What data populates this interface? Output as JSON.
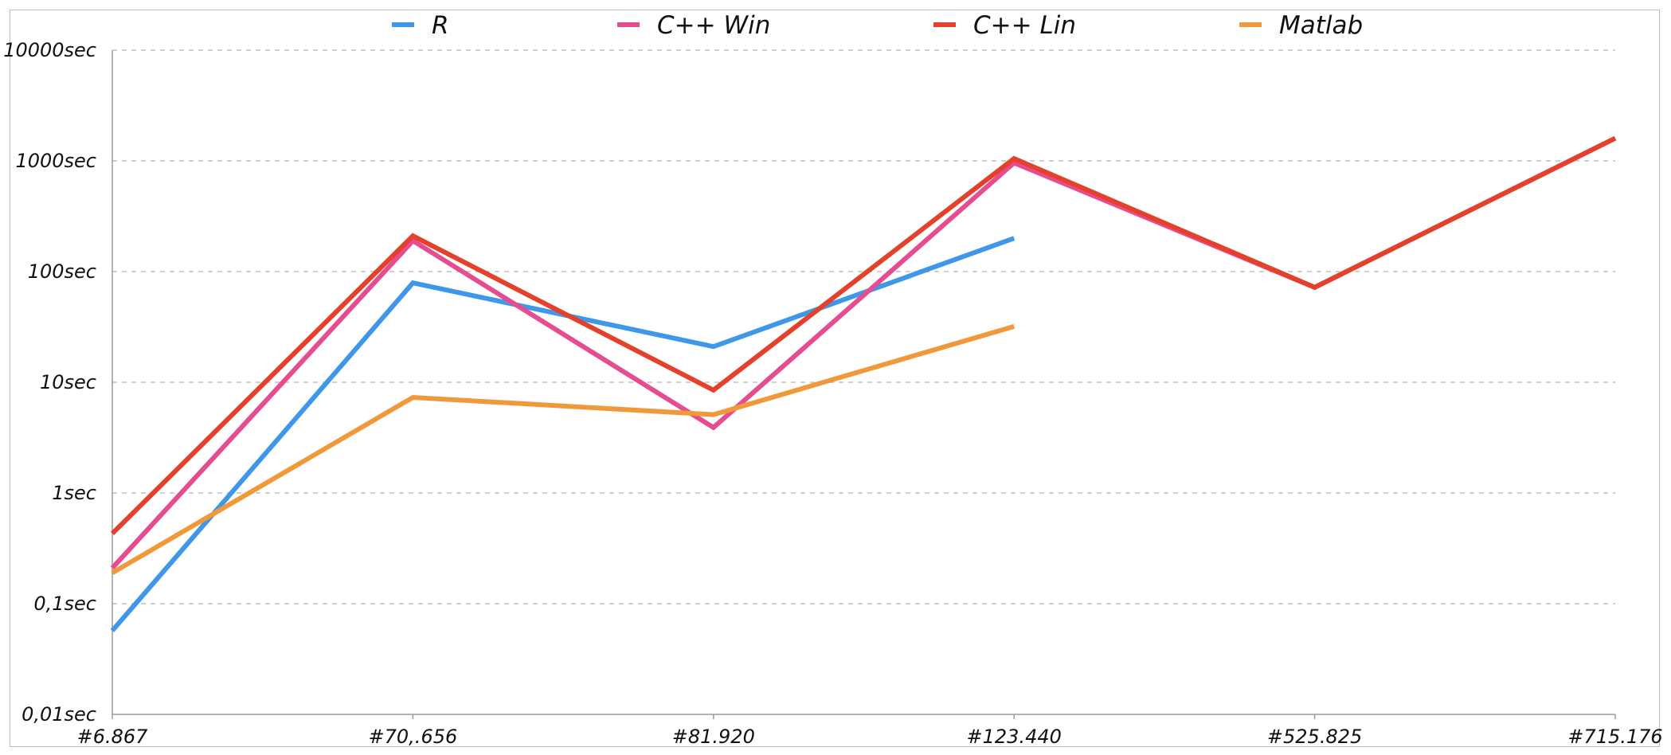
{
  "chart_data": {
    "type": "line",
    "title": "",
    "xlabel": "",
    "ylabel": "",
    "y_scale": "log",
    "ylim": [
      0.01,
      10000
    ],
    "grid": true,
    "legend_position": "top",
    "categories": [
      "#6.867",
      "#70,.656",
      "#81.920",
      "#123.440",
      "#525.825",
      "#715.176"
    ],
    "y_ticks": [
      {
        "value": 0.01,
        "label": "0,01sec"
      },
      {
        "value": 0.1,
        "label": "0,1sec"
      },
      {
        "value": 1,
        "label": "1sec"
      },
      {
        "value": 10,
        "label": "10sec"
      },
      {
        "value": 100,
        "label": "100sec"
      },
      {
        "value": 1000,
        "label": "1000sec"
      },
      {
        "value": 10000,
        "label": "10000sec"
      }
    ],
    "series": [
      {
        "name": "R",
        "color": "#3f97ea",
        "values": [
          0.057,
          79,
          21,
          200,
          null,
          null
        ]
      },
      {
        "name": "C++ Win",
        "color": "#e64d91",
        "values": [
          0.21,
          190,
          3.9,
          960,
          72,
          1600
        ]
      },
      {
        "name": "C++ Lin",
        "color": "#e3412c",
        "values": [
          0.43,
          210,
          8.5,
          1050,
          72,
          1600
        ]
      },
      {
        "name": "Matlab",
        "color": "#f0993a",
        "values": [
          0.19,
          7.3,
          5.1,
          32,
          null,
          null
        ]
      }
    ]
  }
}
